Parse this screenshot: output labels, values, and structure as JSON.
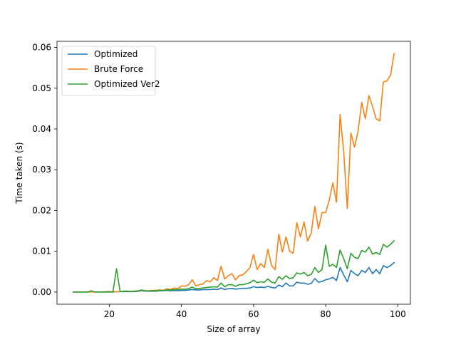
{
  "chart_data": {
    "type": "line",
    "title": "",
    "xlabel": "Size of array",
    "ylabel": "Time taken (s)",
    "xlim": [
      5.5,
      103.5
    ],
    "ylim": [
      -0.003,
      0.0615
    ],
    "xticks": [
      20,
      40,
      60,
      80,
      100
    ],
    "xtick_labels": [
      "20",
      "40",
      "60",
      "80",
      "100"
    ],
    "yticks": [
      0.0,
      0.01,
      0.02,
      0.03,
      0.04,
      0.05,
      0.06
    ],
    "ytick_labels": [
      "0.00",
      "0.01",
      "0.02",
      "0.03",
      "0.04",
      "0.05",
      "0.06"
    ],
    "grid": false,
    "legend_position": "top-left",
    "x": [
      10,
      11,
      12,
      13,
      14,
      15,
      16,
      17,
      18,
      19,
      20,
      21,
      22,
      23,
      24,
      25,
      26,
      27,
      28,
      29,
      30,
      31,
      32,
      33,
      34,
      35,
      36,
      37,
      38,
      39,
      40,
      41,
      42,
      43,
      44,
      45,
      46,
      47,
      48,
      49,
      50,
      51,
      52,
      53,
      54,
      55,
      56,
      57,
      58,
      59,
      60,
      61,
      62,
      63,
      64,
      65,
      66,
      67,
      68,
      69,
      70,
      71,
      72,
      73,
      74,
      75,
      76,
      77,
      78,
      79,
      80,
      81,
      82,
      83,
      84,
      85,
      86,
      87,
      88,
      89,
      90,
      91,
      92,
      93,
      94,
      95,
      96,
      97,
      98,
      99
    ],
    "series": [
      {
        "name": "Optimized",
        "color": "#1f77b4",
        "values": [
          0.0,
          0.0,
          0.0,
          0.0,
          0.0,
          0.0001,
          0.0,
          0.0,
          0.0,
          0.0,
          0.0,
          0.0,
          0.0001,
          0.0001,
          0.0001,
          0.0001,
          0.0001,
          0.0001,
          0.0002,
          0.0003,
          0.0002,
          0.0002,
          0.0002,
          0.0002,
          0.0003,
          0.0003,
          0.0004,
          0.0003,
          0.0004,
          0.0003,
          0.0004,
          0.0004,
          0.0005,
          0.0006,
          0.0005,
          0.0005,
          0.0006,
          0.0006,
          0.0006,
          0.0007,
          0.0006,
          0.001,
          0.0006,
          0.0008,
          0.0009,
          0.0007,
          0.0008,
          0.0009,
          0.0009,
          0.001,
          0.0013,
          0.0011,
          0.0012,
          0.0011,
          0.0014,
          0.0011,
          0.001,
          0.0017,
          0.0013,
          0.0022,
          0.0015,
          0.0015,
          0.0024,
          0.0022,
          0.0022,
          0.0019,
          0.0021,
          0.0033,
          0.0024,
          0.0026,
          0.003,
          0.0032,
          0.0036,
          0.0028,
          0.006,
          0.0042,
          0.0025,
          0.0053,
          0.0045,
          0.004,
          0.0053,
          0.0048,
          0.006,
          0.0045,
          0.0055,
          0.0045,
          0.0065,
          0.006,
          0.0065,
          0.0072
        ]
      },
      {
        "name": "Brute Force",
        "color": "#ff7f0e",
        "values": [
          0.0,
          0.0,
          0.0,
          0.0,
          0.0,
          0.0,
          0.0,
          0.0,
          0.0,
          0.0001,
          0.0001,
          0.0001,
          0.0001,
          0.0001,
          0.0002,
          0.0002,
          0.0002,
          0.0002,
          0.0003,
          0.0004,
          0.0003,
          0.0003,
          0.0004,
          0.0004,
          0.0005,
          0.0004,
          0.0008,
          0.0006,
          0.001,
          0.0008,
          0.0015,
          0.0014,
          0.0018,
          0.003,
          0.0015,
          0.0018,
          0.002,
          0.0028,
          0.0025,
          0.0035,
          0.0028,
          0.0063,
          0.0032,
          0.004,
          0.0045,
          0.003,
          0.004,
          0.0042,
          0.005,
          0.006,
          0.0092,
          0.0055,
          0.007,
          0.006,
          0.0105,
          0.0065,
          0.0055,
          0.0142,
          0.0098,
          0.0135,
          0.01,
          0.0095,
          0.017,
          0.0135,
          0.0172,
          0.0125,
          0.0145,
          0.021,
          0.0155,
          0.0195,
          0.0195,
          0.0225,
          0.0268,
          0.022,
          0.0435,
          0.0345,
          0.0205,
          0.039,
          0.0355,
          0.0395,
          0.0465,
          0.0425,
          0.0482,
          0.0455,
          0.0425,
          0.042,
          0.0515,
          0.0518,
          0.0532,
          0.0585
        ]
      },
      {
        "name": "Optimized Ver2",
        "color": "#2ca02c",
        "values": [
          0.0,
          0.0,
          0.0,
          0.0,
          0.0,
          0.0003,
          0.0,
          0.0,
          0.0,
          0.0,
          0.0,
          0.0,
          0.0057,
          0.0001,
          0.0002,
          0.0002,
          0.0001,
          0.0002,
          0.0003,
          0.0005,
          0.0003,
          0.0003,
          0.0003,
          0.0003,
          0.0004,
          0.0004,
          0.0005,
          0.0005,
          0.0006,
          0.0006,
          0.0007,
          0.0007,
          0.0008,
          0.0012,
          0.0008,
          0.0009,
          0.001,
          0.0011,
          0.0012,
          0.0013,
          0.0012,
          0.0022,
          0.0013,
          0.0018,
          0.0018,
          0.0014,
          0.0018,
          0.0018,
          0.002,
          0.0023,
          0.0029,
          0.0023,
          0.0025,
          0.0024,
          0.0032,
          0.0024,
          0.0022,
          0.0038,
          0.0031,
          0.004,
          0.0033,
          0.0035,
          0.0047,
          0.0044,
          0.0048,
          0.004,
          0.0043,
          0.006,
          0.0048,
          0.0055,
          0.0115,
          0.0063,
          0.0068,
          0.006,
          0.0103,
          0.0082,
          0.0057,
          0.0095,
          0.0085,
          0.0082,
          0.0102,
          0.0098,
          0.011,
          0.0093,
          0.0097,
          0.0092,
          0.0117,
          0.011,
          0.0117,
          0.0126
        ]
      }
    ]
  }
}
